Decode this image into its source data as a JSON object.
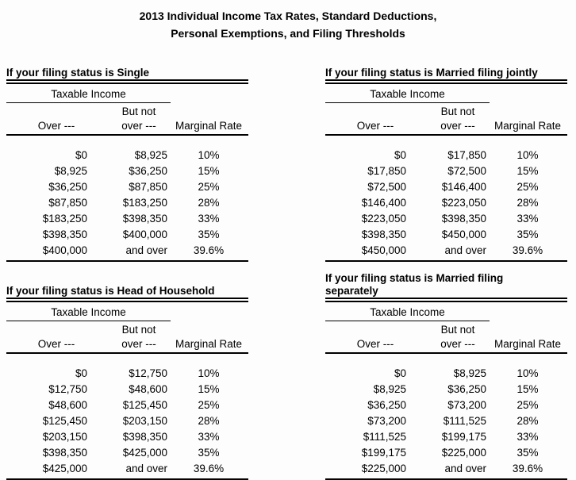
{
  "page_title": {
    "line1": "2013 Individual Income Tax Rates, Standard Deductions,",
    "line2": "Personal Exemptions, and Filing Thresholds"
  },
  "labels": {
    "taxable_income": "Taxable Income",
    "but_not": "But not",
    "over": "Over ---",
    "but_not_over": "over ---",
    "marginal_rate": "Marginal Rate"
  },
  "tables": [
    {
      "id": "single",
      "heading": "If your filing status is Single",
      "heading2": "",
      "rows": [
        [
          "$0",
          "$8,925",
          "10%"
        ],
        [
          "$8,925",
          "$36,250",
          "15%"
        ],
        [
          "$36,250",
          "$87,850",
          "25%"
        ],
        [
          "$87,850",
          "$183,250",
          "28%"
        ],
        [
          "$183,250",
          "$398,350",
          "33%"
        ],
        [
          "$398,350",
          "$400,000",
          "35%"
        ],
        [
          "$400,000",
          "and over",
          "39.6%"
        ]
      ]
    },
    {
      "id": "married-filing-jointly",
      "heading": "If your filing status is Married filing jointly",
      "heading2": "",
      "rows": [
        [
          "$0",
          "$17,850",
          "10%"
        ],
        [
          "$17,850",
          "$72,500",
          "15%"
        ],
        [
          "$72,500",
          "$146,400",
          "25%"
        ],
        [
          "$146,400",
          "$223,050",
          "28%"
        ],
        [
          "$223,050",
          "$398,350",
          "33%"
        ],
        [
          "$398,350",
          "$450,000",
          "35%"
        ],
        [
          "$450,000",
          "and over",
          "39.6%"
        ]
      ]
    },
    {
      "id": "head-of-household",
      "heading": "If your filing status is Head of Household",
      "heading2": "",
      "rows": [
        [
          "$0",
          "$12,750",
          "10%"
        ],
        [
          "$12,750",
          "$48,600",
          "15%"
        ],
        [
          "$48,600",
          "$125,450",
          "25%"
        ],
        [
          "$125,450",
          "$203,150",
          "28%"
        ],
        [
          "$203,150",
          "$398,350",
          "33%"
        ],
        [
          "$398,350",
          "$425,000",
          "35%"
        ],
        [
          "$425,000",
          "and over",
          "39.6%"
        ]
      ]
    },
    {
      "id": "married-filing-separately",
      "heading": "If your filing status is Married filing",
      "heading2": "separately",
      "rows": [
        [
          "$0",
          "$8,925",
          "10%"
        ],
        [
          "$8,925",
          "$36,250",
          "15%"
        ],
        [
          "$36,250",
          "$73,200",
          "25%"
        ],
        [
          "$73,200",
          "$111,525",
          "28%"
        ],
        [
          "$111,525",
          "$199,175",
          "33%"
        ],
        [
          "$199,175",
          "$225,000",
          "35%"
        ],
        [
          "$225,000",
          "and over",
          "39.6%"
        ]
      ]
    }
  ]
}
